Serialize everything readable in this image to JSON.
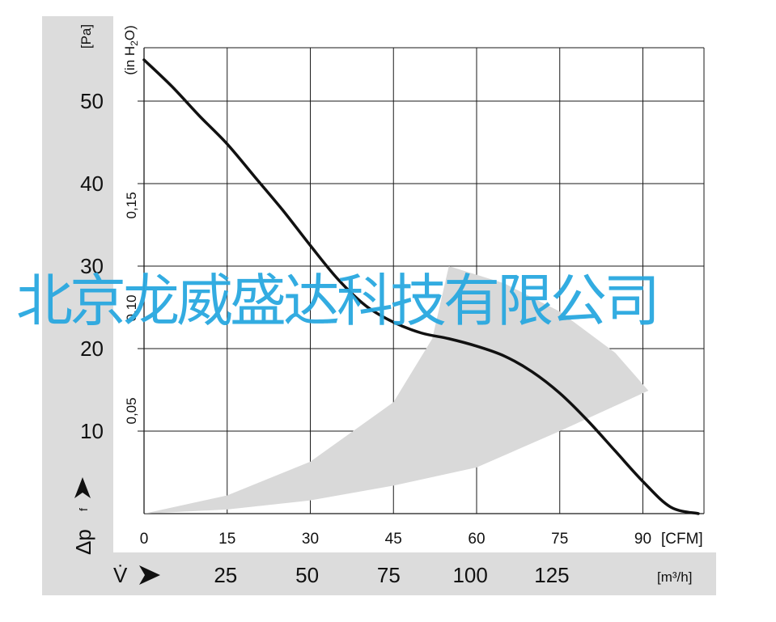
{
  "chart_data": {
    "type": "line",
    "x_axis_primary": {
      "unit_label": "[CFM]",
      "ticks": [
        0,
        15,
        30,
        45,
        60,
        75,
        90
      ],
      "range": [
        0,
        100
      ]
    },
    "x_axis_secondary": {
      "symbol": "V̇",
      "unit_label": "[m³/h]",
      "ticks": [
        25,
        50,
        75,
        100,
        125
      ]
    },
    "y_axis_primary": {
      "symbol": "Δp",
      "subscript": "f",
      "unit_label": "[Pa]",
      "ticks": [
        10,
        20,
        30,
        40,
        50
      ],
      "range": [
        0,
        55
      ]
    },
    "y_axis_secondary": {
      "unit_label_prefix": "(in H",
      "unit_label_sub": "2",
      "unit_label_suffix": "O)",
      "ticks": [
        "0,05",
        "0,10",
        "0,15"
      ]
    },
    "series": [
      {
        "x": [
          0,
          5,
          10,
          15,
          20,
          25,
          30,
          35,
          40,
          45,
          50,
          55,
          60,
          65,
          70,
          75,
          80,
          85,
          90,
          95,
          100
        ],
        "y": [
          55,
          51.8,
          48.2,
          44.8,
          40.8,
          36.8,
          32.5,
          28.4,
          25.2,
          23.2,
          21.9,
          21.2,
          20.3,
          19.1,
          17.2,
          14.6,
          11.3,
          7.6,
          3.9,
          0.8,
          0
        ]
      }
    ],
    "shaded_region": {
      "description_free": true,
      "upper": {
        "x": [
          0,
          15,
          30,
          45,
          52,
          55
        ],
        "y": [
          0,
          2.2,
          6.3,
          13.5,
          21.2,
          30
        ]
      },
      "outer": {
        "x": [
          55,
          65,
          75,
          85,
          91
        ],
        "y": [
          30,
          27.9,
          24.5,
          19.5,
          14.9
        ]
      },
      "lower": {
        "x": [
          91,
          75,
          60,
          45,
          30,
          15,
          0
        ],
        "y": [
          14.9,
          10,
          5.6,
          3.4,
          1.6,
          0.5,
          0
        ]
      }
    },
    "grid": true,
    "legend": "none"
  },
  "watermark": "北京龙威盛达科技有限公司",
  "colors": {
    "band_gray": "#dcdcdc",
    "shaded_region": "#d9d9d9",
    "curve": "#111111",
    "grid": "#1a1a1a",
    "watermark": "#29a8e0"
  }
}
